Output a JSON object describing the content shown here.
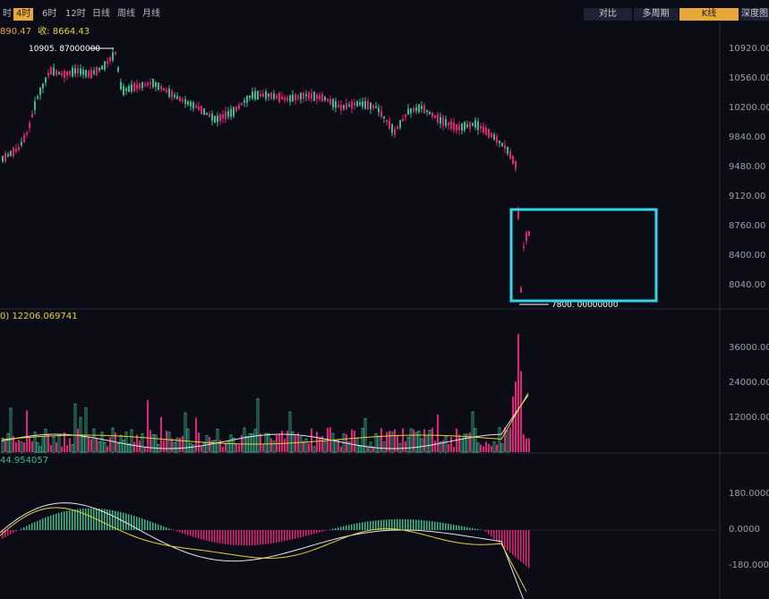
{
  "toolbar": {
    "timeframes": [
      {
        "label": "时",
        "active": false
      },
      {
        "label": "4时",
        "active": true
      },
      {
        "label": "6时",
        "active": false
      },
      {
        "label": "12时",
        "active": false
      },
      {
        "label": "日线",
        "active": false
      },
      {
        "label": "周线",
        "active": false
      },
      {
        "label": "月线",
        "active": false
      }
    ],
    "right_buttons": [
      {
        "label": "对比",
        "active": false
      },
      {
        "label": "多周期",
        "active": false
      },
      {
        "label": "K线",
        "active": true
      },
      {
        "label": "深度图",
        "active": false
      }
    ]
  },
  "price_panel": {
    "info_partial": "890.47",
    "info_close": "收: 8664.43",
    "high_marker": "10905. 87000000",
    "low_marker": "7800. 00000000",
    "y_axis": [
      "10920.00",
      "10560.00",
      "10200.00",
      "9840.00",
      "9480.00",
      "9120.00",
      "8760.00",
      "8400.00",
      "8040.00"
    ]
  },
  "volume_panel": {
    "info": "0) 12206.069741",
    "y_axis": [
      "36000.00",
      "24000.00",
      "12000.00"
    ]
  },
  "macd_panel": {
    "info": "44.954057",
    "y_axis": [
      "180.0000",
      "0.0000",
      "-180.0000"
    ]
  },
  "colors": {
    "up": "#3dbb8a",
    "down": "#e0227a",
    "highlight_box": "#34d6e8",
    "accent": "#e8a93a"
  }
}
